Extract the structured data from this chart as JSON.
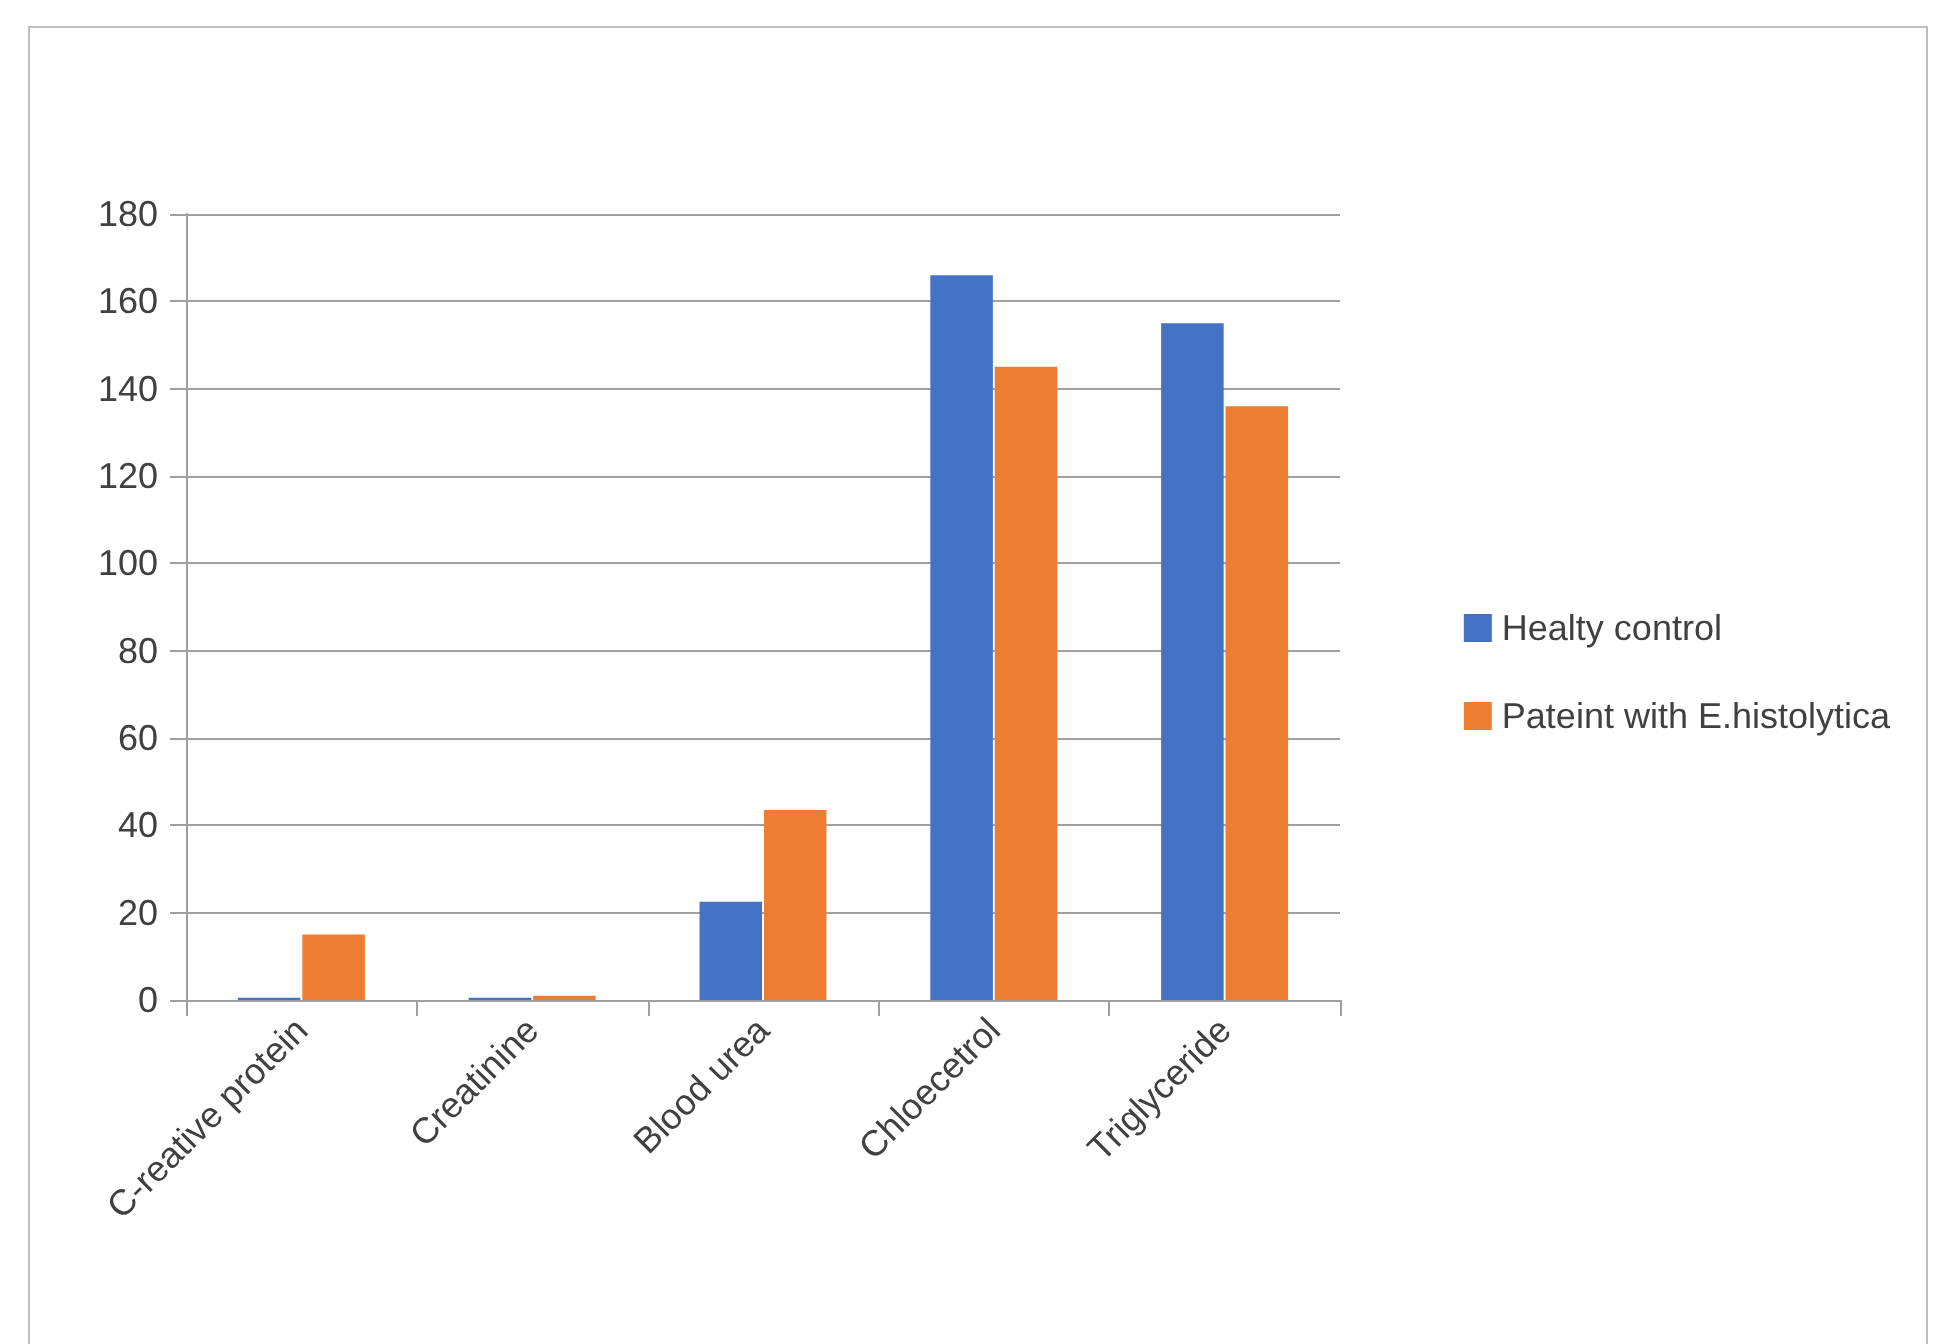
{
  "chart_data": {
    "type": "bar",
    "categories": [
      "C-reative protein",
      "Creatinine",
      "Blood urea",
      "Chloecetrol",
      "Triglyceride"
    ],
    "series": [
      {
        "name": "Healty control",
        "color": "#4472c4",
        "values": [
          0.5,
          0.5,
          22.5,
          166,
          155
        ]
      },
      {
        "name": "Pateint with E.histolytica",
        "color": "#ed7d31",
        "values": [
          15,
          1,
          43.5,
          145,
          136
        ]
      }
    ],
    "ylim": [
      0,
      180
    ],
    "yticks": [
      0,
      20,
      40,
      60,
      80,
      100,
      120,
      140,
      160,
      180
    ],
    "grid": "y",
    "legend": "right"
  }
}
